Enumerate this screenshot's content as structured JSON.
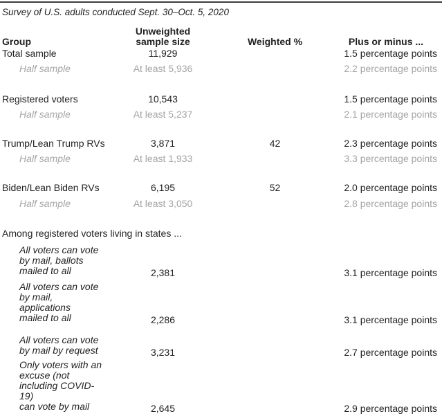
{
  "title": "Survey of U.S. adults conducted Sept. 30–Oct. 5, 2020",
  "table": {
    "columns": {
      "group": "Group",
      "sample_line1": "Unweighted",
      "sample_line2": "sample size",
      "weighted": "Weighted %",
      "moe": "Plus or minus ..."
    },
    "rows": [
      {
        "group": "Total sample",
        "sample": "11,929",
        "weighted": "",
        "moe": "1.5 percentage points"
      },
      {
        "group": "Half sample",
        "sample": "At least 5,936",
        "weighted": "",
        "moe": "2.2 percentage points"
      },
      {
        "group": "Registered voters",
        "sample": "10,543",
        "weighted": "",
        "moe": "1.5 percentage points"
      },
      {
        "group": "Half sample",
        "sample": "At least 5,237",
        "weighted": "",
        "moe": "2.1 percentage points"
      },
      {
        "group": "Trump/Lean Trump RVs",
        "sample": "3,871",
        "weighted": "42",
        "moe": "2.3 percentage points"
      },
      {
        "group": "Half sample",
        "sample": "At least 1,933",
        "weighted": "",
        "moe": "3.3 percentage points"
      },
      {
        "group": "Biden/Lean Biden RVs",
        "sample": "6,195",
        "weighted": "52",
        "moe": "2.0 percentage points"
      },
      {
        "group": "Half sample",
        "sample": "At least 3,050",
        "weighted": "",
        "moe": "2.8 percentage points"
      }
    ],
    "section_header": "Among registered voters living in states ...",
    "state_rows": [
      {
        "lines": [
          "All voters can vote",
          "by mail, ballots",
          "mailed to all"
        ],
        "sample": "2,381",
        "weighted": "",
        "moe": "3.1 percentage points"
      },
      {
        "lines": [
          "All voters can vote",
          "by mail, applications",
          "mailed to all"
        ],
        "sample": "2,286",
        "weighted": "",
        "moe": "3.1 percentage points"
      },
      {
        "lines": [
          "All voters can vote",
          "by mail by request"
        ],
        "sample": "3,231",
        "weighted": "",
        "moe": "2.7 percentage points"
      },
      {
        "lines": [
          "Only voters with an",
          "excuse (not",
          "including COVID-19)",
          "can vote by mail"
        ],
        "sample": "2,645",
        "weighted": "",
        "moe": "2.9 percentage points"
      }
    ]
  },
  "colors": {
    "text_dark": "#222222",
    "text_gray": "#a4a4a4",
    "rule_top": "#3c3c3c",
    "rule_bottom": "#7a7a7a"
  }
}
